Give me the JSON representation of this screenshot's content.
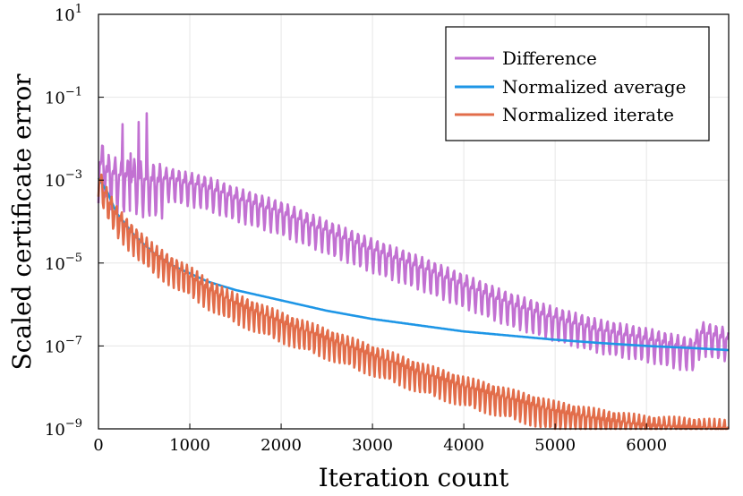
{
  "chart_data": {
    "type": "line",
    "xlabel": "Iteration count",
    "ylabel": "Scaled certificate error",
    "xlim": [
      0,
      6900
    ],
    "ylim_log10": [
      -9,
      1
    ],
    "y_scale": "log",
    "x_ticks": [
      0,
      1000,
      2000,
      3000,
      4000,
      5000,
      6000
    ],
    "x_tick_labels": [
      "0",
      "1000",
      "2000",
      "3000",
      "4000",
      "5000",
      "6000"
    ],
    "y_ticks": [
      {
        "base": "10",
        "exp": "1",
        "value_log10": 1
      },
      {
        "base": "10",
        "exp": "−1",
        "value_log10": -1
      },
      {
        "base": "10",
        "exp": "−3",
        "value_log10": -3
      },
      {
        "base": "10",
        "exp": "−5",
        "value_log10": -5
      },
      {
        "base": "10",
        "exp": "−7",
        "value_log10": -7
      },
      {
        "base": "10",
        "exp": "−9",
        "value_log10": -9
      }
    ],
    "grid": true,
    "legend_position": "top-right",
    "series": [
      {
        "name": "Difference",
        "color": "#c271d2",
        "points_x": [
          0,
          50,
          100,
          150,
          200,
          300,
          400,
          500,
          600,
          800,
          1000,
          1200,
          1500,
          2000,
          2500,
          3000,
          3500,
          4000,
          4500,
          5000,
          5500,
          6000,
          6500,
          6600,
          6700,
          6900
        ],
        "points_log10": [
          -2.5,
          -2.3,
          -2.6,
          -2.6,
          -2.7,
          -2.7,
          -2.7,
          -2.8,
          -2.8,
          -2.85,
          -2.95,
          -3.05,
          -3.3,
          -3.65,
          -4.1,
          -4.55,
          -4.95,
          -5.4,
          -5.85,
          -6.2,
          -6.5,
          -6.7,
          -6.95,
          -6.55,
          -6.6,
          -6.7
        ],
        "oscillation_log10": 0.55,
        "period": 70
      },
      {
        "name": "Normalized average",
        "color": "#1e96e6",
        "points_x": [
          0,
          100,
          200,
          400,
          600,
          800,
          1000,
          1200,
          1500,
          1800,
          2000,
          2500,
          3000,
          3500,
          4000,
          4500,
          5000,
          5500,
          6000,
          6500,
          6900
        ],
        "points_log10": [
          -2.95,
          -3.3,
          -3.8,
          -4.35,
          -4.75,
          -5.05,
          -5.25,
          -5.45,
          -5.65,
          -5.8,
          -5.9,
          -6.15,
          -6.35,
          -6.5,
          -6.65,
          -6.75,
          -6.85,
          -6.93,
          -7.0,
          -7.05,
          -7.1
        ],
        "oscillation_log10": 0,
        "period": 0
      },
      {
        "name": "Normalized iterate",
        "color": "#e26d4a",
        "points_x": [
          0,
          100,
          200,
          400,
          600,
          800,
          1000,
          1200,
          1500,
          2000,
          2500,
          3000,
          3500,
          4000,
          4500,
          5000,
          5500,
          6000,
          6500,
          6900
        ],
        "points_log10": [
          -2.8,
          -3.35,
          -3.75,
          -4.25,
          -4.65,
          -4.95,
          -5.2,
          -5.5,
          -5.85,
          -6.3,
          -6.7,
          -7.1,
          -7.5,
          -7.85,
          -8.15,
          -8.45,
          -8.65,
          -8.8,
          -8.85,
          -8.9
        ],
        "oscillation_log10": 0.5,
        "period": 55
      }
    ]
  }
}
